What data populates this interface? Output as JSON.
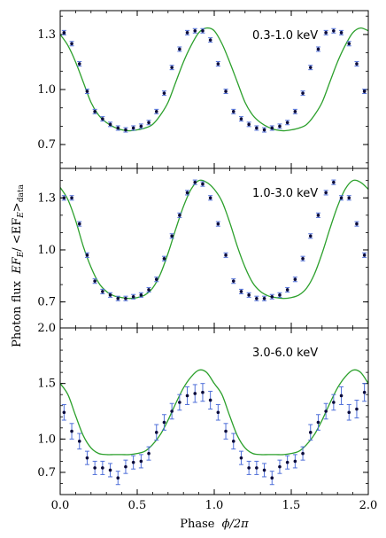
{
  "chart_data": {
    "type": "line",
    "xlabel": "Phase",
    "xlabel_math": "ϕ/2π",
    "ylabel": "Photon flux",
    "ylabel_math": "EF",
    "ylabel_math_sub": "E",
    "ylabel_math_tail": "/ <EF",
    "ylabel_math_tail_sub": "E",
    "ylabel_math_close": ">",
    "ylabel_math_close_sub": "data",
    "xlim": [
      0.0,
      2.0
    ],
    "xticks": [
      "0.0",
      "0.5",
      "1.0",
      "1.5",
      "2.0"
    ],
    "model_color": "#2ca02c",
    "data_color": "#0b0b3b",
    "errorbar_color": "#4f6fd9",
    "panels": [
      {
        "label": "0.3-1.0 keV",
        "ylim": [
          0.57,
          1.43
        ],
        "yticks": [
          "0.7",
          "1.0",
          "1.3"
        ],
        "model": {
          "x": [
            0,
            0.05,
            0.1,
            0.15,
            0.2,
            0.25,
            0.3,
            0.35,
            0.4,
            0.45,
            0.5,
            0.55,
            0.6,
            0.65,
            0.7,
            0.75,
            0.8,
            0.85,
            0.9,
            0.95,
            1.0,
            1.05,
            1.1,
            1.15,
            1.2,
            1.25,
            1.3,
            1.35,
            1.4,
            1.45,
            1.5,
            1.55,
            1.6,
            1.65,
            1.7,
            1.75,
            1.8,
            1.85,
            1.9,
            1.95,
            2.0
          ],
          "y": [
            1.3,
            1.24,
            1.15,
            1.04,
            0.93,
            0.86,
            0.82,
            0.795,
            0.78,
            0.775,
            0.78,
            0.79,
            0.81,
            0.86,
            0.93,
            1.04,
            1.15,
            1.24,
            1.31,
            1.335,
            1.32,
            1.25,
            1.15,
            1.04,
            0.93,
            0.86,
            0.82,
            0.795,
            0.78,
            0.775,
            0.78,
            0.79,
            0.81,
            0.86,
            0.93,
            1.04,
            1.15,
            1.24,
            1.31,
            1.335,
            1.32
          ]
        },
        "points": {
          "x": [
            0.025,
            0.075,
            0.125,
            0.175,
            0.225,
            0.275,
            0.325,
            0.375,
            0.425,
            0.475,
            0.525,
            0.575,
            0.625,
            0.675,
            0.725,
            0.775,
            0.825,
            0.875,
            0.925,
            0.975,
            1.025,
            1.075,
            1.125,
            1.175,
            1.225,
            1.275,
            1.325,
            1.375,
            1.425,
            1.475,
            1.525,
            1.575,
            1.625,
            1.675,
            1.725,
            1.775,
            1.825,
            1.875,
            1.925,
            1.975
          ],
          "y": [
            1.31,
            1.25,
            1.14,
            0.99,
            0.88,
            0.84,
            0.81,
            0.79,
            0.78,
            0.79,
            0.8,
            0.82,
            0.88,
            0.98,
            1.12,
            1.22,
            1.31,
            1.32,
            1.32,
            1.27,
            1.14,
            0.99,
            0.88,
            0.84,
            0.81,
            0.79,
            0.78,
            0.79,
            0.8,
            0.82,
            0.88,
            0.98,
            1.12,
            1.22,
            1.31,
            1.32,
            1.31,
            1.25,
            1.14,
            0.99
          ],
          "err": [
            0.012,
            0.012,
            0.012,
            0.012,
            0.012,
            0.012,
            0.012,
            0.012,
            0.012,
            0.012,
            0.012,
            0.012,
            0.012,
            0.012,
            0.012,
            0.012,
            0.012,
            0.012,
            0.012,
            0.012,
            0.012,
            0.012,
            0.012,
            0.012,
            0.012,
            0.012,
            0.012,
            0.012,
            0.012,
            0.012,
            0.012,
            0.012,
            0.012,
            0.012,
            0.012,
            0.012,
            0.012,
            0.012,
            0.012,
            0.012
          ]
        }
      },
      {
        "label": "1.0-3.0 keV",
        "ylim": [
          0.55,
          1.47
        ],
        "yticks": [
          "0.7",
          "1.0",
          "1.3"
        ],
        "model": {
          "x": [
            0,
            0.05,
            0.1,
            0.15,
            0.2,
            0.25,
            0.3,
            0.35,
            0.4,
            0.45,
            0.5,
            0.55,
            0.6,
            0.65,
            0.7,
            0.75,
            0.8,
            0.85,
            0.9,
            0.95,
            1.0,
            1.05,
            1.1,
            1.15,
            1.2,
            1.25,
            1.3,
            1.35,
            1.4,
            1.45,
            1.5,
            1.55,
            1.6,
            1.65,
            1.7,
            1.75,
            1.8,
            1.85,
            1.9,
            1.95,
            2.0
          ],
          "y": [
            1.36,
            1.29,
            1.17,
            1.02,
            0.9,
            0.81,
            0.76,
            0.735,
            0.725,
            0.72,
            0.725,
            0.74,
            0.78,
            0.86,
            0.98,
            1.12,
            1.25,
            1.35,
            1.4,
            1.39,
            1.35,
            1.28,
            1.16,
            1.02,
            0.9,
            0.81,
            0.76,
            0.735,
            0.725,
            0.72,
            0.725,
            0.74,
            0.78,
            0.86,
            0.98,
            1.12,
            1.25,
            1.35,
            1.4,
            1.39,
            1.35
          ]
        },
        "points": {
          "x": [
            0.025,
            0.075,
            0.125,
            0.175,
            0.225,
            0.275,
            0.325,
            0.375,
            0.425,
            0.475,
            0.525,
            0.575,
            0.625,
            0.675,
            0.725,
            0.775,
            0.825,
            0.875,
            0.925,
            0.975,
            1.025,
            1.075,
            1.125,
            1.175,
            1.225,
            1.275,
            1.325,
            1.375,
            1.425,
            1.475,
            1.525,
            1.575,
            1.625,
            1.675,
            1.725,
            1.775,
            1.825,
            1.875,
            1.925,
            1.975
          ],
          "y": [
            1.3,
            1.3,
            1.15,
            0.97,
            0.82,
            0.76,
            0.74,
            0.72,
            0.72,
            0.73,
            0.74,
            0.77,
            0.83,
            0.95,
            1.08,
            1.2,
            1.33,
            1.39,
            1.38,
            1.3,
            1.15,
            0.97,
            0.82,
            0.76,
            0.74,
            0.72,
            0.72,
            0.73,
            0.74,
            0.77,
            0.83,
            0.95,
            1.08,
            1.2,
            1.33,
            1.39,
            1.3,
            1.3,
            1.15,
            0.97
          ],
          "err": [
            0.013,
            0.013,
            0.013,
            0.013,
            0.013,
            0.013,
            0.013,
            0.013,
            0.013,
            0.013,
            0.013,
            0.013,
            0.013,
            0.013,
            0.013,
            0.013,
            0.013,
            0.013,
            0.013,
            0.013,
            0.013,
            0.013,
            0.013,
            0.013,
            0.013,
            0.013,
            0.013,
            0.013,
            0.013,
            0.013,
            0.013,
            0.013,
            0.013,
            0.013,
            0.013,
            0.013,
            0.013,
            0.013,
            0.013,
            0.013
          ]
        }
      },
      {
        "label": "3.0-6.0 keV",
        "ylim": [
          0.5,
          2.0
        ],
        "yticks": [
          "0.7",
          "1.0",
          "1.5",
          "2.0"
        ],
        "model": {
          "x": [
            0,
            0.05,
            0.1,
            0.15,
            0.2,
            0.25,
            0.3,
            0.35,
            0.4,
            0.45,
            0.5,
            0.55,
            0.6,
            0.65,
            0.7,
            0.75,
            0.8,
            0.85,
            0.9,
            0.95,
            1.0,
            1.05,
            1.1,
            1.15,
            1.2,
            1.25,
            1.3,
            1.35,
            1.4,
            1.45,
            1.5,
            1.55,
            1.6,
            1.65,
            1.7,
            1.75,
            1.8,
            1.85,
            1.9,
            1.95,
            2.0
          ],
          "y": [
            1.5,
            1.4,
            1.21,
            1.03,
            0.92,
            0.87,
            0.86,
            0.86,
            0.86,
            0.86,
            0.87,
            0.89,
            0.95,
            1.04,
            1.17,
            1.32,
            1.46,
            1.56,
            1.62,
            1.6,
            1.5,
            1.4,
            1.21,
            1.03,
            0.92,
            0.87,
            0.86,
            0.86,
            0.86,
            0.86,
            0.87,
            0.89,
            0.95,
            1.04,
            1.17,
            1.32,
            1.46,
            1.56,
            1.62,
            1.6,
            1.5
          ]
        },
        "points": {
          "x": [
            0.025,
            0.075,
            0.125,
            0.175,
            0.225,
            0.275,
            0.325,
            0.375,
            0.425,
            0.475,
            0.525,
            0.575,
            0.625,
            0.675,
            0.725,
            0.775,
            0.825,
            0.875,
            0.925,
            0.975,
            1.025,
            1.075,
            1.125,
            1.175,
            1.225,
            1.275,
            1.325,
            1.375,
            1.425,
            1.475,
            1.525,
            1.575,
            1.625,
            1.675,
            1.725,
            1.775,
            1.825,
            1.875,
            1.925,
            1.975
          ],
          "y": [
            1.24,
            1.07,
            0.98,
            0.83,
            0.74,
            0.74,
            0.72,
            0.65,
            0.75,
            0.79,
            0.8,
            0.87,
            1.06,
            1.15,
            1.25,
            1.33,
            1.39,
            1.41,
            1.42,
            1.35,
            1.24,
            1.07,
            0.98,
            0.83,
            0.74,
            0.74,
            0.72,
            0.65,
            0.75,
            0.79,
            0.8,
            0.87,
            1.06,
            1.15,
            1.25,
            1.33,
            1.39,
            1.24,
            1.27,
            1.42
          ],
          "err": [
            0.07,
            0.07,
            0.07,
            0.06,
            0.06,
            0.06,
            0.06,
            0.06,
            0.06,
            0.06,
            0.06,
            0.06,
            0.07,
            0.07,
            0.07,
            0.07,
            0.08,
            0.08,
            0.08,
            0.08,
            0.07,
            0.07,
            0.07,
            0.06,
            0.06,
            0.06,
            0.06,
            0.06,
            0.06,
            0.06,
            0.06,
            0.06,
            0.07,
            0.07,
            0.07,
            0.07,
            0.08,
            0.07,
            0.08,
            0.08
          ]
        }
      }
    ]
  }
}
